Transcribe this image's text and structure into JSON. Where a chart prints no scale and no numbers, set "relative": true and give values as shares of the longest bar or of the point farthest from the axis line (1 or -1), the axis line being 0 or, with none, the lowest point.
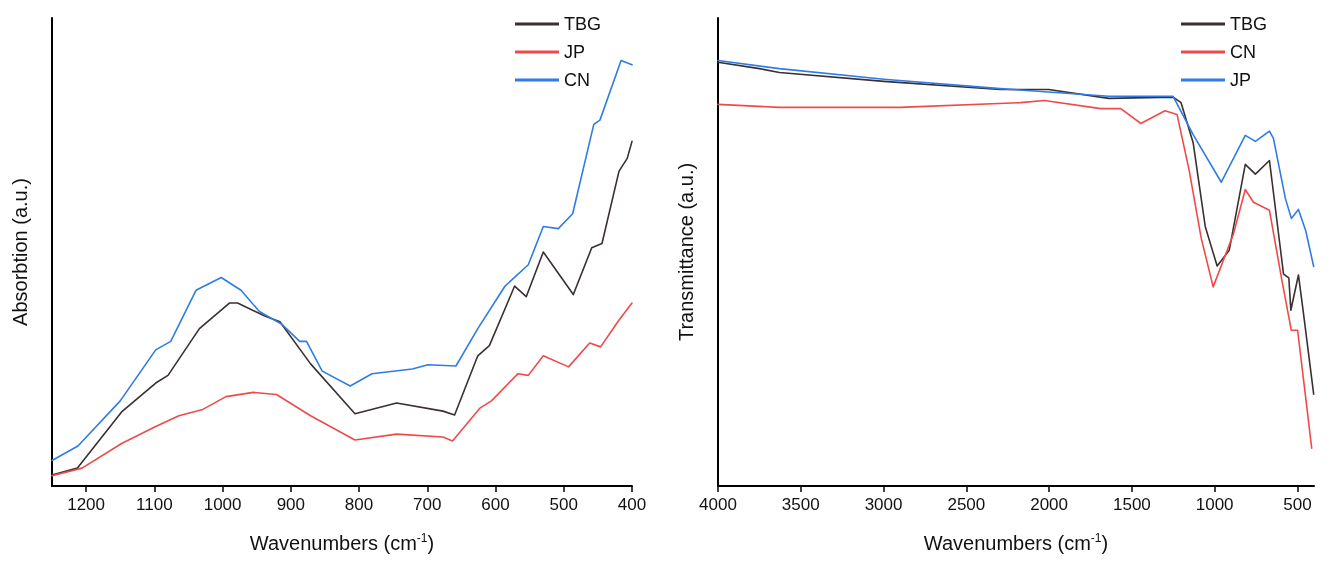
{
  "chart_data": [
    {
      "type": "line",
      "xlabel": "Wavenumbers (cm$^{-1}$)",
      "ylabel": "Absorbtion (a.u.)",
      "relative": true,
      "xlim": [
        1250,
        400
      ],
      "xticks": [
        1200,
        1100,
        1000,
        900,
        800,
        700,
        600,
        500,
        400
      ],
      "grid": false,
      "legend": "top right",
      "marker": "none",
      "line_style": "solid",
      "series": [
        {
          "name": "TBG",
          "color": "#3a3030",
          "x": [
            1250,
            1213,
            1148,
            1098,
            1080,
            1034,
            990,
            978,
            939,
            916,
            871,
            806,
            745,
            677,
            660,
            626,
            609,
            572,
            555,
            530,
            508,
            486,
            459,
            444,
            419,
            407,
            400
          ],
          "values": [
            0.026,
            0.042,
            0.174,
            0.242,
            0.26,
            0.37,
            0.43,
            0.43,
            0.4,
            0.386,
            0.287,
            0.17,
            0.195,
            0.176,
            0.167,
            0.306,
            0.33,
            0.47,
            0.445,
            0.55,
            0.5,
            0.45,
            0.56,
            0.57,
            0.74,
            0.77,
            0.81
          ]
        },
        {
          "name": "JP",
          "color": "#ef4a4a",
          "x": [
            1250,
            1206,
            1148,
            1098,
            1064,
            1029,
            995,
            955,
            921,
            871,
            806,
            745,
            677,
            663,
            623,
            606,
            567,
            552,
            530,
            493,
            462,
            446,
            419,
            400
          ],
          "values": [
            0.024,
            0.042,
            0.1,
            0.14,
            0.165,
            0.18,
            0.21,
            0.22,
            0.215,
            0.165,
            0.108,
            0.122,
            0.115,
            0.106,
            0.183,
            0.2,
            0.264,
            0.26,
            0.306,
            0.28,
            0.336,
            0.327,
            0.39,
            0.43
          ]
        },
        {
          "name": "CN",
          "color": "#2f7ce6",
          "x": [
            1250,
            1212,
            1150,
            1098,
            1076,
            1039,
            1002,
            973,
            946,
            913,
            887,
            877,
            854,
            813,
            781,
            722,
            699,
            658,
            626,
            586,
            552,
            530,
            508,
            487,
            456,
            447,
            416,
            400
          ],
          "values": [
            0.06,
            0.094,
            0.2,
            0.32,
            0.34,
            0.46,
            0.49,
            0.46,
            0.41,
            0.38,
            0.34,
            0.34,
            0.27,
            0.235,
            0.264,
            0.275,
            0.285,
            0.282,
            0.37,
            0.47,
            0.52,
            0.61,
            0.605,
            0.64,
            0.85,
            0.86,
            1.0,
            0.99
          ]
        }
      ]
    },
    {
      "type": "line",
      "xlabel": "Wavenumbers (cm$^{-1}$)",
      "ylabel": "Transmittance (a.u.)",
      "relative": true,
      "xlim": [
        4000,
        400
      ],
      "xticks": [
        4000,
        3500,
        3000,
        2500,
        2000,
        1500,
        1000,
        500
      ],
      "grid": false,
      "legend": "top right",
      "marker": "none",
      "line_style": "solid",
      "series": [
        {
          "name": "TBG",
          "color": "#3a3030",
          "x": [
            4000,
            3750,
            3629,
            2998,
            2295,
            2003,
            1640,
            1251,
            1203,
            1130,
            1057,
            985,
            912,
            815,
            754,
            669,
            584,
            552,
            540,
            494,
            463,
            402
          ],
          "values": [
            0.996,
            0.981,
            0.972,
            0.951,
            0.932,
            0.932,
            0.911,
            0.914,
            0.901,
            0.807,
            0.61,
            0.517,
            0.554,
            0.756,
            0.733,
            0.765,
            0.498,
            0.489,
            0.413,
            0.496,
            0.404,
            0.216
          ]
        },
        {
          "name": "CN",
          "color": "#ef4a4a",
          "x": [
            4000,
            3629,
            2901,
            2173,
            2028,
            1688,
            1567,
            1446,
            1300,
            1227,
            1154,
            1081,
            1009,
            887,
            815,
            766,
            669,
            596,
            537,
            499,
            450,
            414
          ],
          "values": [
            0.897,
            0.89,
            0.89,
            0.901,
            0.906,
            0.887,
            0.887,
            0.852,
            0.882,
            0.873,
            0.742,
            0.582,
            0.468,
            0.592,
            0.697,
            0.667,
            0.648,
            0.488,
            0.366,
            0.366,
            0.207,
            0.089
          ]
        },
        {
          "name": "JP",
          "color": "#2f7ce6",
          "x": [
            4000,
            3629,
            2998,
            2295,
            1640,
            1251,
            1130,
            960,
            815,
            754,
            669,
            645,
            573,
            537,
            494,
            450,
            402
          ],
          "values": [
            1.0,
            0.981,
            0.956,
            0.934,
            0.916,
            0.916,
            0.826,
            0.714,
            0.824,
            0.81,
            0.834,
            0.817,
            0.676,
            0.629,
            0.65,
            0.6,
            0.516
          ]
        }
      ]
    }
  ]
}
